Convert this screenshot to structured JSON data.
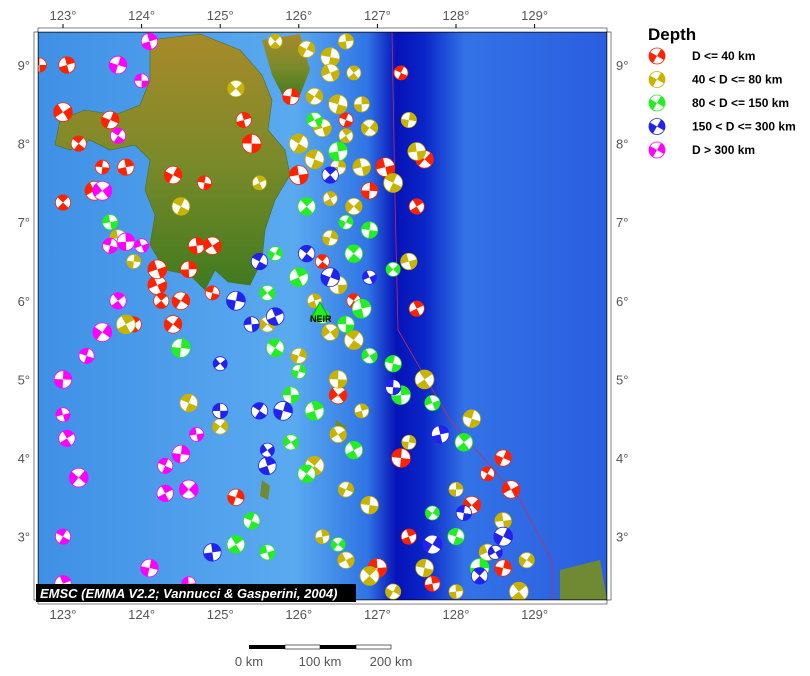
{
  "legend": {
    "title": "Depth",
    "items": [
      {
        "label": "D <= 40 km",
        "color": "#ff2200"
      },
      {
        "label": "40 < D <= 80 km",
        "color": "#c8b400"
      },
      {
        "label": "80 < D <= 150 km",
        "color": "#22ee22"
      },
      {
        "label": "150 < D <= 300 km",
        "color": "#2222ee"
      },
      {
        "label": "D > 300 km",
        "color": "#ff00ff"
      }
    ]
  },
  "axes": {
    "lon_ticks": [
      "123°",
      "124°",
      "125°",
      "126°",
      "127°",
      "128°",
      "129°"
    ],
    "lat_ticks": [
      "9°",
      "8°",
      "7°",
      "6°",
      "5°",
      "4°",
      "3°"
    ],
    "lon_range": [
      122.7,
      129.95
    ],
    "lat_range": [
      2.15,
      9.4
    ]
  },
  "station_label": "NEIR",
  "credit": "EMSC (EMMA V2.2; Vannucci & Gasperini, 2004)",
  "scale_bar": {
    "labels": [
      "0 km",
      "100 km",
      "200 km"
    ]
  },
  "events": [
    [
      122.7,
      9.0,
      0
    ],
    [
      123.05,
      9.0,
      0
    ],
    [
      123.0,
      8.4,
      0
    ],
    [
      123.2,
      8.0,
      0
    ],
    [
      123.6,
      8.3,
      0
    ],
    [
      123.5,
      7.7,
      0
    ],
    [
      123.8,
      7.7,
      0
    ],
    [
      123.4,
      7.4,
      0
    ],
    [
      123.0,
      7.25,
      0
    ],
    [
      124.4,
      7.6,
      0
    ],
    [
      124.8,
      7.5,
      0
    ],
    [
      124.7,
      6.7,
      0
    ],
    [
      124.2,
      6.2,
      0
    ],
    [
      124.25,
      6.0,
      0
    ],
    [
      124.5,
      6.0,
      0
    ],
    [
      124.9,
      6.1,
      0
    ],
    [
      124.6,
      6.4,
      0
    ],
    [
      124.2,
      6.4,
      0
    ],
    [
      123.9,
      5.7,
      0
    ],
    [
      124.4,
      5.7,
      0
    ],
    [
      126.6,
      8.3,
      0
    ],
    [
      126.9,
      7.4,
      0
    ],
    [
      127.1,
      7.7,
      0
    ],
    [
      127.5,
      7.2,
      0
    ],
    [
      127.6,
      7.8,
      0
    ],
    [
      127.3,
      8.9,
      0
    ],
    [
      125.9,
      8.6,
      0
    ],
    [
      126.0,
      7.6,
      0
    ],
    [
      127.5,
      5.9,
      0
    ],
    [
      128.2,
      3.4,
      0
    ],
    [
      128.4,
      3.8,
      0
    ],
    [
      128.6,
      2.6,
      0
    ],
    [
      127.0,
      2.6,
      0
    ],
    [
      127.4,
      3.0,
      0
    ],
    [
      126.5,
      4.8,
      0
    ],
    [
      126.7,
      6.0,
      0
    ],
    [
      125.2,
      3.5,
      0
    ],
    [
      125.4,
      8.0,
      0
    ],
    [
      125.3,
      8.3,
      0
    ],
    [
      124.9,
      6.7,
      0
    ],
    [
      126.3,
      6.5,
      0
    ],
    [
      128.6,
      4.0,
      0
    ],
    [
      127.3,
      4.0,
      0
    ],
    [
      127.7,
      2.4,
      0
    ],
    [
      128.7,
      3.6,
      0
    ],
    [
      125.7,
      9.3,
      1
    ],
    [
      126.1,
      9.2,
      1
    ],
    [
      126.4,
      9.1,
      1
    ],
    [
      126.6,
      9.3,
      1
    ],
    [
      126.4,
      8.9,
      1
    ],
    [
      126.7,
      8.9,
      1
    ],
    [
      126.2,
      8.6,
      1
    ],
    [
      126.5,
      8.5,
      1
    ],
    [
      126.8,
      8.5,
      1
    ],
    [
      126.3,
      8.2,
      1
    ],
    [
      126.6,
      8.1,
      1
    ],
    [
      126.9,
      8.2,
      1
    ],
    [
      126.2,
      7.8,
      1
    ],
    [
      126.5,
      7.7,
      1
    ],
    [
      126.8,
      7.7,
      1
    ],
    [
      126.4,
      7.3,
      1
    ],
    [
      126.7,
      7.2,
      1
    ],
    [
      127.2,
      7.5,
      1
    ],
    [
      127.4,
      8.3,
      1
    ],
    [
      127.5,
      7.9,
      1
    ],
    [
      125.5,
      7.5,
      1
    ],
    [
      125.2,
      8.7,
      1
    ],
    [
      126.0,
      8.0,
      1
    ],
    [
      126.4,
      6.8,
      1
    ],
    [
      126.5,
      6.2,
      1
    ],
    [
      126.2,
      6.0,
      1
    ],
    [
      126.4,
      5.6,
      1
    ],
    [
      126.7,
      5.5,
      1
    ],
    [
      126.0,
      5.3,
      1
    ],
    [
      126.5,
      5.0,
      1
    ],
    [
      126.8,
      4.6,
      1
    ],
    [
      126.5,
      4.3,
      1
    ],
    [
      126.2,
      3.9,
      1
    ],
    [
      126.6,
      3.6,
      1
    ],
    [
      126.9,
      3.4,
      1
    ],
    [
      126.3,
      3.0,
      1
    ],
    [
      126.6,
      2.7,
      1
    ],
    [
      126.9,
      2.5,
      1
    ],
    [
      127.2,
      2.3,
      1
    ],
    [
      127.6,
      2.6,
      1
    ],
    [
      128.0,
      2.3,
      1
    ],
    [
      128.4,
      2.8,
      1
    ],
    [
      128.8,
      2.3,
      1
    ],
    [
      128.9,
      2.7,
      1
    ],
    [
      128.2,
      4.5,
      1
    ],
    [
      128.0,
      3.6,
      1
    ],
    [
      127.4,
      6.5,
      1
    ],
    [
      127.6,
      5.0,
      1
    ],
    [
      125.0,
      4.4,
      1
    ],
    [
      124.6,
      4.7,
      1
    ],
    [
      123.9,
      6.5,
      1
    ],
    [
      123.7,
      6.8,
      1
    ],
    [
      123.8,
      5.7,
      1
    ],
    [
      125.6,
      5.7,
      1
    ],
    [
      124.5,
      7.2,
      1
    ],
    [
      127.4,
      4.2,
      1
    ],
    [
      128.6,
      3.2,
      1
    ],
    [
      126.0,
      6.3,
      2
    ],
    [
      125.6,
      6.1,
      2
    ],
    [
      125.7,
      5.4,
      2
    ],
    [
      126.0,
      5.1,
      2
    ],
    [
      125.9,
      4.8,
      2
    ],
    [
      126.2,
      4.6,
      2
    ],
    [
      125.9,
      4.2,
      2
    ],
    [
      126.1,
      3.8,
      2
    ],
    [
      126.3,
      5.8,
      2
    ],
    [
      126.6,
      5.7,
      2
    ],
    [
      126.8,
      5.9,
      2
    ],
    [
      126.9,
      5.3,
      2
    ],
    [
      126.7,
      6.6,
      2
    ],
    [
      126.6,
      7.0,
      2
    ],
    [
      126.9,
      6.9,
      2
    ],
    [
      126.5,
      7.9,
      2
    ],
    [
      126.2,
      8.3,
      2
    ],
    [
      126.1,
      7.2,
      2
    ],
    [
      125.7,
      6.6,
      2
    ],
    [
      127.2,
      5.2,
      2
    ],
    [
      127.3,
      4.8,
      2
    ],
    [
      127.7,
      4.7,
      2
    ],
    [
      128.1,
      4.2,
      2
    ],
    [
      127.7,
      3.3,
      2
    ],
    [
      128.0,
      3.0,
      2
    ],
    [
      128.3,
      2.6,
      2
    ],
    [
      125.6,
      2.8,
      2
    ],
    [
      125.2,
      2.9,
      2
    ],
    [
      126.5,
      2.9,
      2
    ],
    [
      125.4,
      3.2,
      2
    ],
    [
      124.5,
      5.4,
      2
    ],
    [
      123.6,
      7.0,
      2
    ],
    [
      126.7,
      4.1,
      2
    ],
    [
      127.2,
      6.4,
      2
    ],
    [
      125.5,
      6.5,
      3
    ],
    [
      125.2,
      6.0,
      3
    ],
    [
      125.4,
      5.7,
      3
    ],
    [
      125.7,
      5.8,
      3
    ],
    [
      125.0,
      5.2,
      3
    ],
    [
      125.5,
      4.6,
      3
    ],
    [
      125.8,
      4.6,
      3
    ],
    [
      125.0,
      4.6,
      3
    ],
    [
      125.6,
      3.9,
      3
    ],
    [
      125.6,
      4.1,
      3
    ],
    [
      126.1,
      6.6,
      3
    ],
    [
      126.4,
      6.3,
      3
    ],
    [
      127.2,
      4.9,
      3
    ],
    [
      127.8,
      4.3,
      3
    ],
    [
      128.5,
      2.8,
      3
    ],
    [
      128.3,
      2.5,
      3
    ],
    [
      128.6,
      3.0,
      3
    ],
    [
      128.1,
      3.3,
      3
    ],
    [
      124.9,
      2.8,
      3
    ],
    [
      126.9,
      6.3,
      3
    ],
    [
      126.4,
      7.6,
      3
    ],
    [
      127.7,
      2.9,
      3
    ],
    [
      123.6,
      6.7,
      4
    ],
    [
      123.8,
      6.75,
      4
    ],
    [
      124.0,
      6.7,
      4
    ],
    [
      123.7,
      6.0,
      4
    ],
    [
      123.5,
      5.6,
      4
    ],
    [
      123.3,
      5.3,
      4
    ],
    [
      123.0,
      5.0,
      4
    ],
    [
      123.0,
      4.55,
      4
    ],
    [
      123.05,
      4.25,
      4
    ],
    [
      123.2,
      3.75,
      4
    ],
    [
      124.3,
      3.9,
      4
    ],
    [
      124.5,
      4.05,
      4
    ],
    [
      124.7,
      4.3,
      4
    ],
    [
      124.3,
      3.55,
      4
    ],
    [
      124.6,
      3.6,
      4
    ],
    [
      123.0,
      3.0,
      4
    ],
    [
      124.1,
      2.6,
      4
    ],
    [
      124.6,
      2.4,
      4
    ],
    [
      123.0,
      2.4,
      4
    ],
    [
      123.5,
      7.4,
      4
    ],
    [
      123.7,
      8.1,
      4
    ],
    [
      123.7,
      9.0,
      4
    ],
    [
      124.0,
      8.8,
      4
    ],
    [
      124.1,
      9.3,
      4
    ]
  ]
}
